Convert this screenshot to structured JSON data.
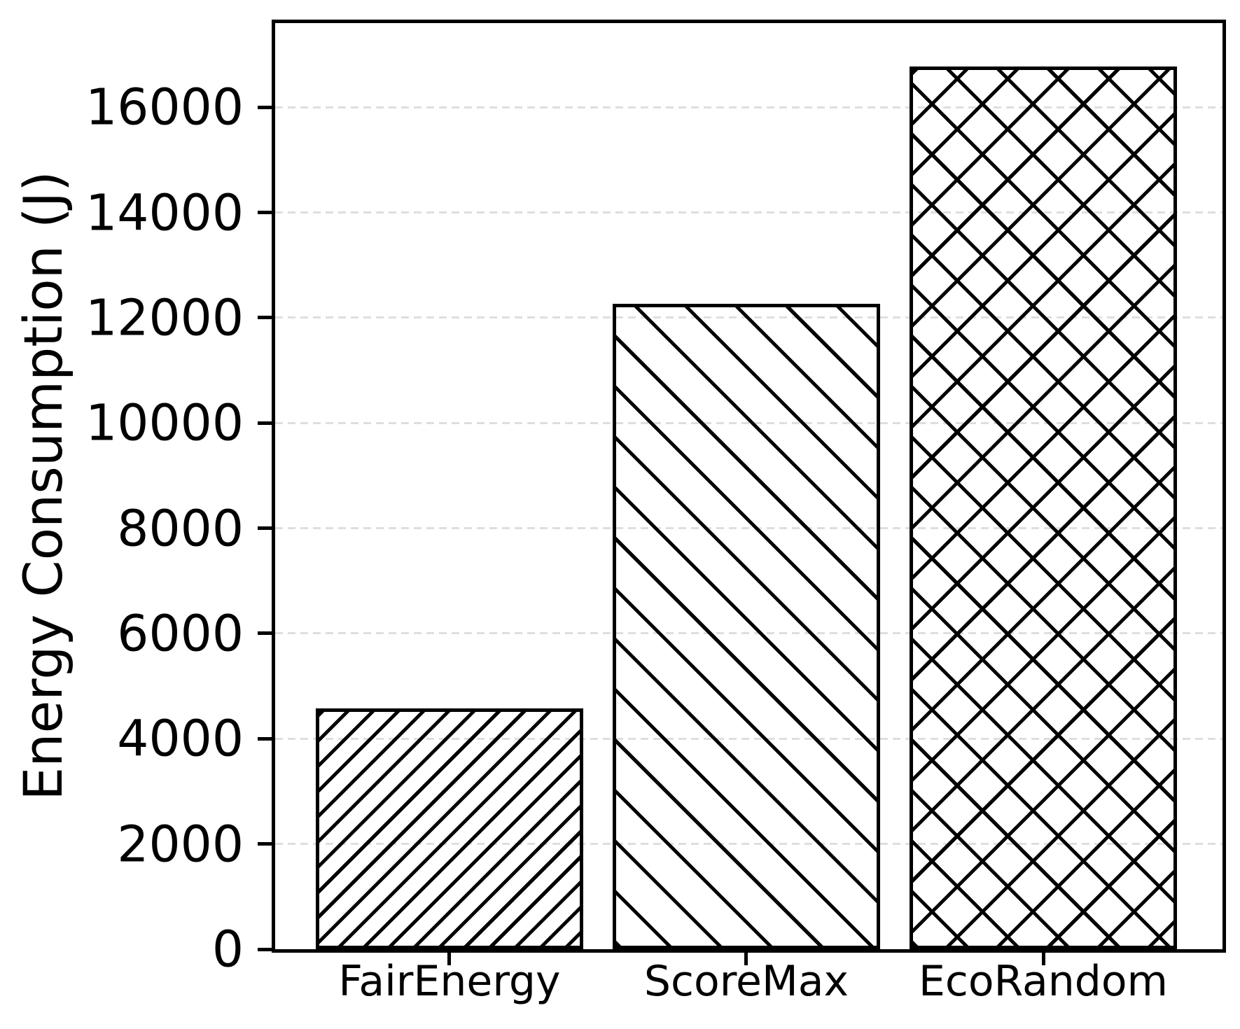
{
  "chart_data": {
    "type": "bar",
    "categories": [
      "FairEnergy",
      "ScoreMax",
      "EcoRandom"
    ],
    "values": [
      4580,
      12260,
      16770
    ],
    "hatches": [
      "/",
      "\\",
      "x"
    ],
    "title": "",
    "xlabel": "",
    "ylabel": "Energy Consumption (J)",
    "ylim": [
      0,
      17600
    ],
    "yticks": [
      0,
      2000,
      4000,
      6000,
      8000,
      10000,
      12000,
      14000,
      16000
    ],
    "grid": "horizontal dashed gridlines at y ticks, drawn behind bars and visible through transparent bar faces",
    "legend": "none",
    "colors": {
      "bar_face": "transparent",
      "bar_edge": "#000000",
      "hatch": "#000000",
      "gridline": "#dedede",
      "text": "#000000",
      "background": "#ffffff"
    }
  }
}
